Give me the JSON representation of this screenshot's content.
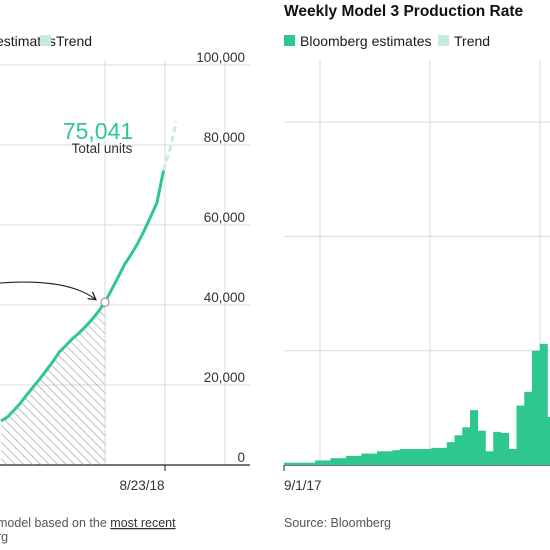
{
  "colors": {
    "accent": "#2ec88f",
    "trend": "#c6ecdd",
    "grid": "#d9d9d9",
    "axis": "#222222",
    "hatch": "#9a9a9a"
  },
  "left_panel": {
    "legend": {
      "estimates_label_visible": "estimates",
      "trend_label": "Trend"
    },
    "callout": {
      "value": "75,041",
      "label": "Total units"
    },
    "note": {
      "prefix": "model based on the ",
      "link": "most recent",
      "line2": "rg"
    }
  },
  "right_panel": {
    "title": "Weekly Model 3 Production Rate",
    "legend": {
      "estimates_label": "Bloomberg estimates",
      "trend_label": "Trend"
    },
    "source": "Source: Bloomberg"
  },
  "chart_data": [
    {
      "type": "line",
      "title": "",
      "xlabel": "",
      "ylabel": "",
      "ylim": [
        0,
        100000
      ],
      "yticks": [
        0,
        20000,
        40000,
        60000,
        80000,
        100000
      ],
      "ytick_labels": [
        "0",
        "20,000",
        "40,000",
        "60,000",
        "80,000",
        "100,000"
      ],
      "xtick_labels": [
        "8/23/18"
      ],
      "grid": true,
      "legend_placement": "top-left",
      "series": [
        {
          "name": "estimates",
          "x": [
            -16,
            -15,
            -14,
            -13,
            -12,
            -11,
            -10,
            -9,
            -8,
            -7,
            -6,
            -5,
            -4,
            -3,
            -2,
            -1,
            0,
            1,
            2,
            3,
            4,
            5,
            6,
            7,
            8,
            9
          ],
          "y": [
            11000,
            12000,
            13700,
            15500,
            17600,
            19600,
            21600,
            23700,
            25900,
            28300,
            29900,
            31600,
            33000,
            34600,
            36400,
            38400,
            40700,
            43800,
            46900,
            50100,
            52600,
            55300,
            58500,
            62000,
            65600,
            73600
          ]
        },
        {
          "name": "Trend",
          "x": [
            9,
            10,
            11
          ],
          "y": [
            73600,
            79000,
            86000
          ]
        }
      ],
      "annotations": [
        {
          "text": "75,041",
          "subtext": "Total units",
          "x": 6,
          "y": 80000
        }
      ]
    },
    {
      "type": "bar",
      "title": "Weekly Model 3 Production Rate",
      "xlabel": "",
      "ylabel": "",
      "ylim": [
        0,
        4000
      ],
      "xtick_labels": [
        "9/1/17"
      ],
      "grid": true,
      "legend_placement": "top-left",
      "series": [
        {
          "name": "Bloomberg estimates",
          "categories": [
            "9/1/17",
            "",
            "",
            "",
            "",
            "",
            "",
            "",
            "",
            "",
            "",
            "",
            "",
            "",
            "",
            "",
            "",
            "",
            "",
            "",
            "",
            "",
            "",
            "",
            "",
            "",
            "",
            "",
            "",
            "",
            "",
            "",
            "",
            "",
            ""
          ],
          "values": [
            20,
            20,
            20,
            20,
            40,
            40,
            60,
            60,
            80,
            80,
            100,
            100,
            120,
            120,
            130,
            140,
            140,
            140,
            140,
            150,
            150,
            200,
            260,
            330,
            480,
            300,
            120,
            290,
            280,
            140,
            520,
            640,
            1000,
            1060,
            420
          ]
        }
      ]
    }
  ]
}
